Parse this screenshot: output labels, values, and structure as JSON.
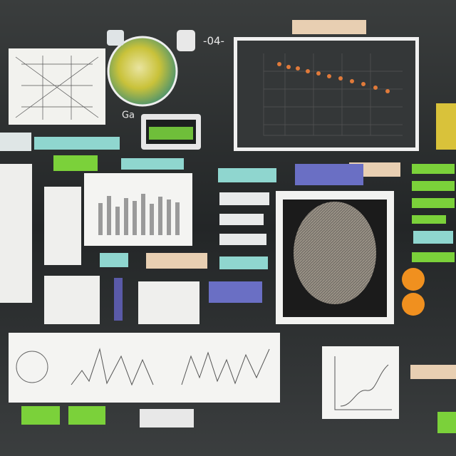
{
  "labels": {
    "top": "-04-",
    "left": "Ga"
  }
}
